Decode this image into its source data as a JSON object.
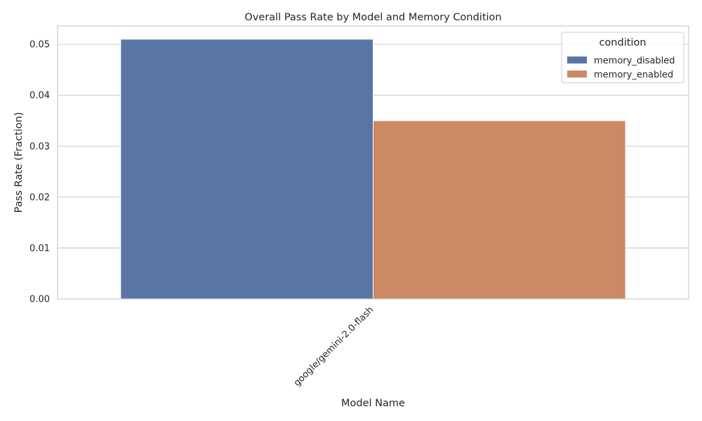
{
  "chart_data": {
    "type": "bar",
    "title": "Overall Pass Rate by Model and Memory Condition",
    "xlabel": "Model Name",
    "ylabel": "Pass Rate (Fraction)",
    "categories": [
      "google/gemini-2.0-flash"
    ],
    "series": [
      {
        "name": "memory_disabled",
        "values": [
          0.051
        ],
        "color": "#5875a4"
      },
      {
        "name": "memory_enabled",
        "values": [
          0.035
        ],
        "color": "#cc8963"
      }
    ],
    "ylim": [
      0,
      0.0536
    ],
    "yticks": [
      0.0,
      0.01,
      0.02,
      0.03,
      0.04,
      0.05
    ],
    "ytick_labels": [
      "0.00",
      "0.01",
      "0.02",
      "0.03",
      "0.04",
      "0.05"
    ],
    "grid": true,
    "legend": {
      "title": "condition",
      "placement": "top-right"
    }
  }
}
